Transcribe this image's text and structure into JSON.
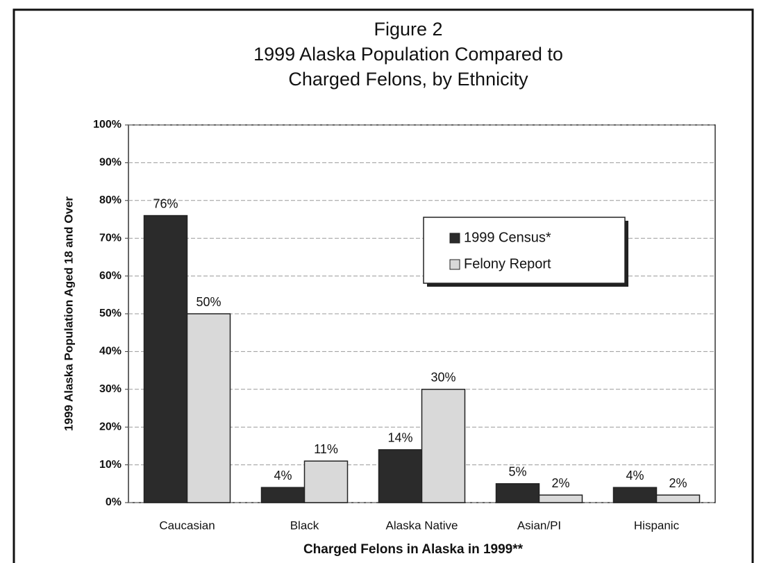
{
  "chart_data": {
    "type": "bar",
    "title": "Figure 2",
    "subtitle": [
      "1999 Alaska Population Compared to",
      "Charged Felons, by Ethnicity"
    ],
    "x_label": "Charged Felons in Alaska in 1999**",
    "y_label": "1999 Alaska Population Aged 18 and Over",
    "categories": [
      "Caucasian",
      "Black",
      "Alaska Native",
      "Asian/PI",
      "Hispanic"
    ],
    "series": [
      {
        "name": "1999 Census*",
        "color": "#2b2b2b",
        "values": [
          76,
          4,
          14,
          5,
          4
        ],
        "value_labels": [
          "76%",
          "4%",
          "14%",
          "5%",
          "4%"
        ]
      },
      {
        "name": "Felony Report",
        "color": "#d9d9d9",
        "values": [
          50,
          11,
          30,
          2,
          2
        ],
        "value_labels": [
          "50%",
          "11%",
          "30%",
          "2%",
          "2%"
        ]
      }
    ],
    "ylim": [
      0,
      100
    ],
    "yticks": [
      {
        "value": 0,
        "label": "0%"
      },
      {
        "value": 10,
        "label": "10%"
      },
      {
        "value": 20,
        "label": "20%"
      },
      {
        "value": 30,
        "label": "30%"
      },
      {
        "value": 40,
        "label": "40%"
      },
      {
        "value": 50,
        "label": "50%"
      },
      {
        "value": 60,
        "label": "60%"
      },
      {
        "value": 70,
        "label": "70%"
      },
      {
        "value": 80,
        "label": "80%"
      },
      {
        "value": 90,
        "label": "90%"
      },
      {
        "value": 100,
        "label": "100%"
      }
    ],
    "grid": true,
    "legend": "right"
  }
}
